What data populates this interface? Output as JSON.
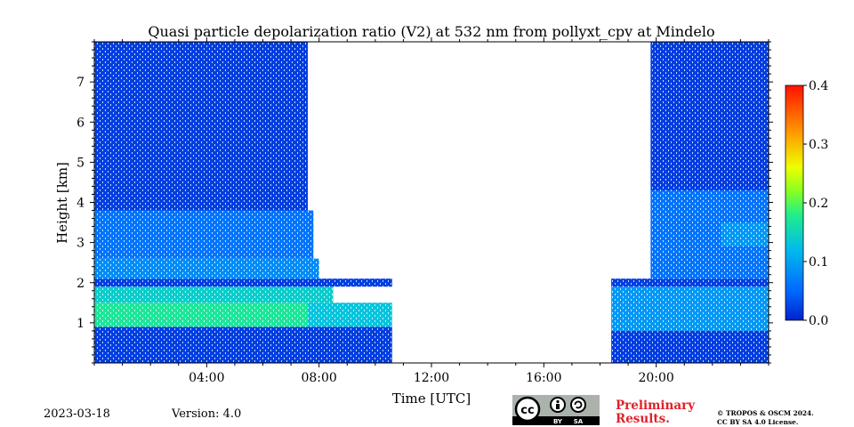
{
  "chart_data": {
    "type": "heatmap",
    "title": "Quasi particle depolarization ratio (V2) at 532 nm from pollyxt_cpv at Mindelo",
    "xlabel": "Time [UTC]",
    "ylabel": "Height [km]",
    "xlim": [
      0,
      24
    ],
    "ylim": [
      0,
      8
    ],
    "xticks": [
      4,
      8,
      12,
      16,
      20
    ],
    "xtick_labels": [
      "04:00",
      "08:00",
      "12:00",
      "16:00",
      "20:00"
    ],
    "yticks": [
      1,
      2,
      3,
      4,
      5,
      6,
      7
    ],
    "ytick_labels": [
      "1",
      "2",
      "3",
      "4",
      "5",
      "6",
      "7"
    ],
    "colorbar": {
      "min": 0.0,
      "max": 0.4,
      "ticks": [
        0.0,
        0.1,
        0.2,
        0.3,
        0.4
      ],
      "tick_labels": [
        "0.0",
        "0.1",
        "0.2",
        "0.3",
        "0.4"
      ],
      "colormap": "jet"
    },
    "data_gaps_utc": [
      [
        10.6,
        18.4
      ]
    ],
    "layers": [
      {
        "t_start": 0.0,
        "t_end": 10.6,
        "h_bottom": 0.0,
        "h_top": 0.9,
        "value": 0.02
      },
      {
        "t_start": 0.0,
        "t_end": 7.6,
        "h_bottom": 0.9,
        "h_top": 1.5,
        "value": 0.17
      },
      {
        "t_start": 7.6,
        "t_end": 10.6,
        "h_bottom": 0.9,
        "h_top": 1.5,
        "value": 0.13
      },
      {
        "t_start": 0.0,
        "t_end": 8.5,
        "h_bottom": 1.5,
        "h_top": 1.9,
        "value": 0.14
      },
      {
        "t_start": 0.0,
        "t_end": 10.6,
        "h_bottom": 1.9,
        "h_top": 2.1,
        "value": 0.02
      },
      {
        "t_start": 0.0,
        "t_end": 8.0,
        "h_bottom": 2.1,
        "h_top": 2.6,
        "value": 0.08
      },
      {
        "t_start": 0.0,
        "t_end": 7.8,
        "h_bottom": 2.6,
        "h_top": 3.8,
        "value": 0.06
      },
      {
        "t_start": 0.0,
        "t_end": 7.6,
        "h_bottom": 3.8,
        "h_top": 8.0,
        "value": 0.02
      },
      {
        "t_start": 18.4,
        "t_end": 24.0,
        "h_bottom": 0.0,
        "h_top": 0.8,
        "value": 0.02
      },
      {
        "t_start": 18.4,
        "t_end": 24.0,
        "h_bottom": 0.8,
        "h_top": 1.9,
        "value": 0.09
      },
      {
        "t_start": 18.4,
        "t_end": 24.0,
        "h_bottom": 1.9,
        "h_top": 2.1,
        "value": 0.02
      },
      {
        "t_start": 19.8,
        "t_end": 24.0,
        "h_bottom": 2.1,
        "h_top": 4.3,
        "value": 0.06
      },
      {
        "t_start": 22.3,
        "t_end": 24.0,
        "h_bottom": 2.9,
        "h_top": 3.5,
        "value": 0.09
      },
      {
        "t_start": 19.8,
        "t_end": 24.0,
        "h_bottom": 4.3,
        "h_top": 8.0,
        "value": 0.02
      }
    ]
  },
  "footer": {
    "date": "2023-03-18",
    "version": "Version: 4.0",
    "preliminary_line1": "Preliminary",
    "preliminary_line2": "Results.",
    "copyright_line1": "© TROPOS & OSCM 2024.",
    "copyright_line2": "CC BY SA 4.0 License.",
    "license_badge": {
      "cc": "cc",
      "by": "BY",
      "sa": "SA",
      "icons": [
        "cc-icon",
        "by-person-icon",
        "sa-share-icon"
      ]
    }
  },
  "colors": {
    "preliminary": "#e0212a",
    "axis": "#000000",
    "background": "#ffffff"
  }
}
